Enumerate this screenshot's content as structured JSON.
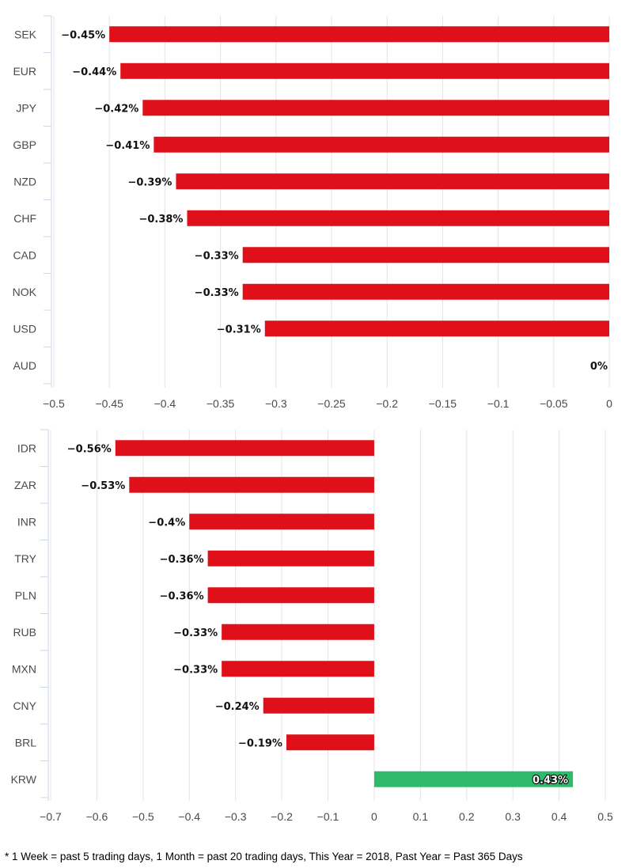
{
  "chart_data": [
    {
      "type": "bar",
      "orientation": "horizontal",
      "categories": [
        "SEK",
        "EUR",
        "JPY",
        "GBP",
        "NZD",
        "CHF",
        "CAD",
        "NOK",
        "USD",
        "AUD"
      ],
      "values": [
        -0.45,
        -0.44,
        -0.42,
        -0.41,
        -0.39,
        -0.38,
        -0.33,
        -0.33,
        -0.31,
        0
      ],
      "data_labels": [
        "−0.45%",
        "−0.44%",
        "−0.42%",
        "−0.41%",
        "−0.39%",
        "−0.38%",
        "−0.33%",
        "−0.33%",
        "−0.31%",
        "0%"
      ],
      "xlim": [
        -0.5,
        0
      ],
      "xticks": [
        -0.5,
        -0.45,
        -0.4,
        -0.35,
        -0.3,
        -0.25,
        -0.2,
        -0.15,
        -0.1,
        -0.05,
        0
      ],
      "xtick_labels": [
        "−0.5",
        "−0.45",
        "−0.4",
        "−0.35",
        "−0.3",
        "−0.25",
        "−0.2",
        "−0.15",
        "−0.1",
        "−0.05",
        "0"
      ],
      "grid": true
    },
    {
      "type": "bar",
      "orientation": "horizontal",
      "categories": [
        "IDR",
        "ZAR",
        "INR",
        "TRY",
        "PLN",
        "RUB",
        "MXN",
        "CNY",
        "BRL",
        "KRW"
      ],
      "values": [
        -0.56,
        -0.53,
        -0.4,
        -0.36,
        -0.36,
        -0.33,
        -0.33,
        -0.24,
        -0.19,
        0.43
      ],
      "data_labels": [
        "−0.56%",
        "−0.53%",
        "−0.4%",
        "−0.36%",
        "−0.36%",
        "−0.33%",
        "−0.33%",
        "−0.24%",
        "−0.19%",
        "0.43%"
      ],
      "xlim": [
        -0.7,
        0.5
      ],
      "xticks": [
        -0.7,
        -0.6,
        -0.5,
        -0.4,
        -0.3,
        -0.2,
        -0.1,
        0,
        0.1,
        0.2,
        0.3,
        0.4,
        0.5
      ],
      "xtick_labels": [
        "−0.7",
        "−0.6",
        "−0.5",
        "−0.4",
        "−0.3",
        "−0.2",
        "−0.1",
        "0",
        "0.1",
        "0.2",
        "0.3",
        "0.4",
        "0.5"
      ],
      "grid": true
    }
  ],
  "colors": {
    "negative": "#e0101a",
    "positive": "#2dbb6b",
    "grid": "#e4e4e4",
    "axis": "#ccd6eb"
  },
  "footnote": "* 1 Week = past 5 trading days, 1 Month = past 20 trading days, This Year = 2018, Past Year = Past 365 Days"
}
